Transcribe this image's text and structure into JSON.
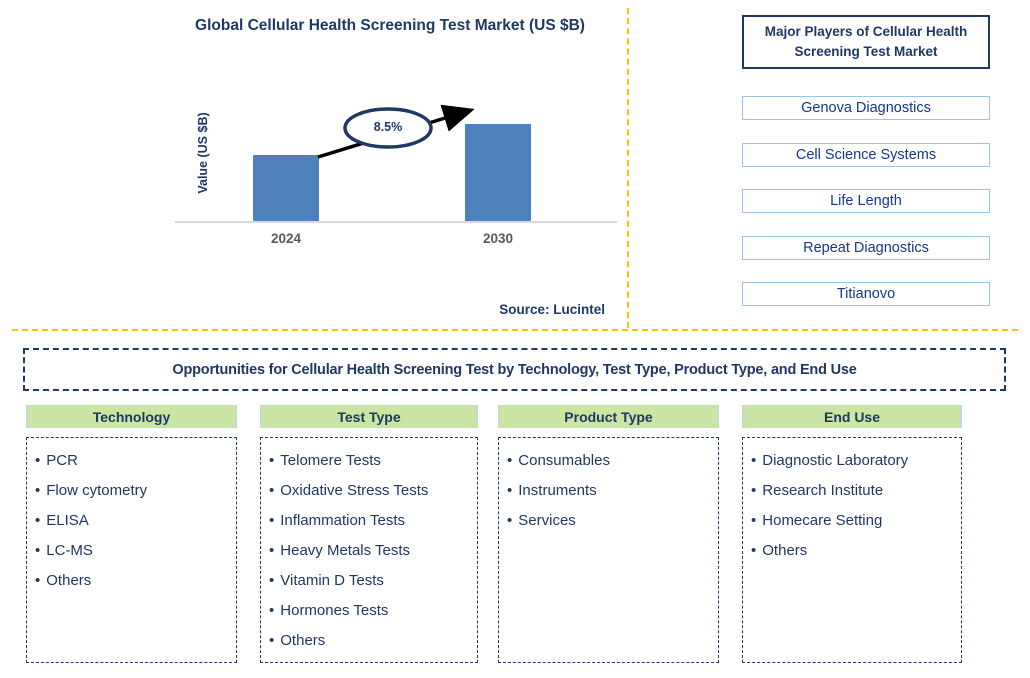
{
  "bullet": "•",
  "colors": {
    "navy_text": "#1F3864",
    "player_text_blue": "#17368C",
    "bar_blue": "#4F81BD",
    "header_green": "#CBE5A4",
    "divider_yellow": "#FFC000",
    "player_border_blue": "#9DC3E6",
    "axis_gray": "#D9D9D9",
    "tick_gray": "#595959"
  },
  "chart": {
    "title": "Global Cellular Health Screening Test Market (US $B)",
    "y_axis_label": "Value (US $B)",
    "growth_annotation": "8.5%",
    "source": "Source: Lucintel"
  },
  "chart_data": {
    "type": "bar",
    "title": "Global Cellular Health Screening Test Market (US $B)",
    "categories": [
      "2024",
      "2030"
    ],
    "values": [
      1.0,
      1.48
    ],
    "values_note": "relative bar heights; y-axis shows no tick values",
    "xlabel": "",
    "ylabel": "Value (US $B)",
    "annotation": "8.5% growth arrow from 2024 bar to 2030 bar",
    "legend": false,
    "grid": false,
    "bar_color": "#4F81BD"
  },
  "players_panel": {
    "title": "Major Players of Cellular Health Screening Test Market",
    "items": [
      "Genova Diagnostics",
      "Cell Science Systems",
      "Life Length",
      "Repeat Diagnostics",
      "Titianovo"
    ]
  },
  "opportunities": {
    "banner": "Opportunities for Cellular Health Screening Test by Technology, Test Type, Product Type, and End Use",
    "columns": [
      {
        "header": "Technology",
        "items": [
          "PCR",
          "Flow cytometry",
          "ELISA",
          "LC-MS",
          "Others"
        ]
      },
      {
        "header": "Test Type",
        "items": [
          "Telomere Tests",
          "Oxidative Stress Tests",
          "Inflammation Tests",
          "Heavy Metals Tests",
          "Vitamin D Tests",
          "Hormones Tests",
          "Others"
        ]
      },
      {
        "header": "Product Type",
        "items": [
          "Consumables",
          "Instruments",
          "Services"
        ]
      },
      {
        "header": "End Use",
        "items": [
          "Diagnostic Laboratory",
          "Research Institute",
          "Homecare Setting",
          "Others"
        ]
      }
    ]
  }
}
